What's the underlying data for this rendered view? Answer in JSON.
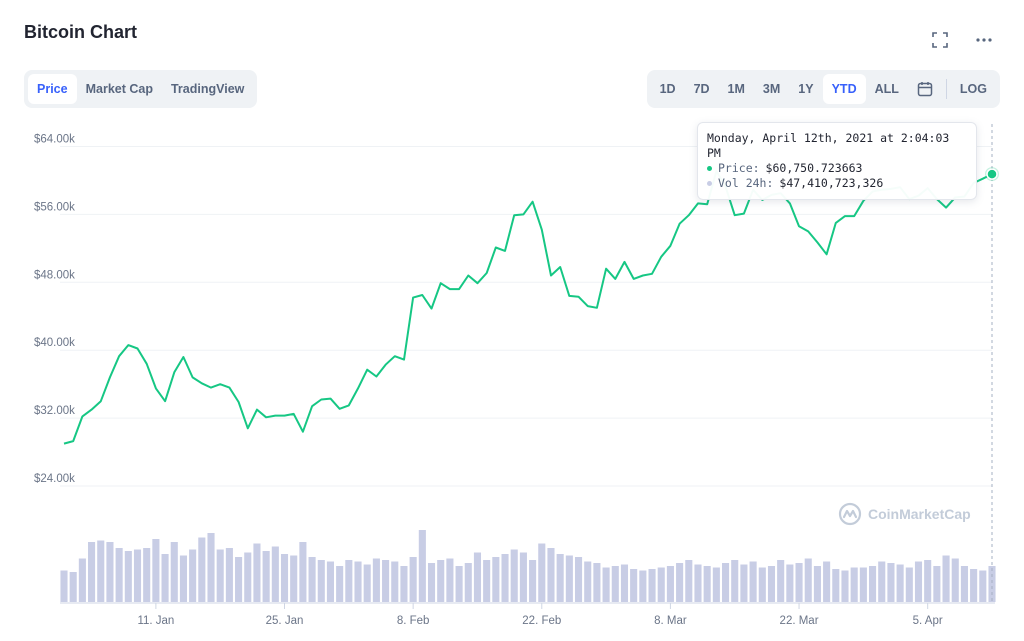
{
  "header": {
    "title": "Bitcoin Chart"
  },
  "icons": {
    "fullscreen": "fullscreen-icon",
    "more": "more-icon",
    "calendar": "calendar-icon",
    "logo": "coinmarketcap-logo-icon"
  },
  "tabs": [
    {
      "label": "Price",
      "active": true
    },
    {
      "label": "Market Cap",
      "active": false
    },
    {
      "label": "TradingView",
      "active": false
    }
  ],
  "ranges": [
    {
      "label": "1D",
      "active": false
    },
    {
      "label": "7D",
      "active": false
    },
    {
      "label": "1M",
      "active": false
    },
    {
      "label": "3M",
      "active": false
    },
    {
      "label": "1Y",
      "active": false
    },
    {
      "label": "YTD",
      "active": true
    },
    {
      "label": "ALL",
      "active": false
    }
  ],
  "log_label": "LOG",
  "tooltip": {
    "date": "Monday, April 12th, 2021 at 2:04:03 PM",
    "price_label": "Price:",
    "price_value": "$60,750.723663",
    "vol_label": "Vol 24h:",
    "vol_value": "$47,410,723,326"
  },
  "watermark": "CoinMarketCap",
  "colors": {
    "line": "#16c784",
    "volume": "#c8cde5",
    "accent": "#3861fb",
    "grid": "#eff2f5"
  },
  "chart_data": {
    "type": "line",
    "title": "Bitcoin Chart",
    "x_start": "2021-01-01",
    "x_end": "2021-04-12",
    "xticks": [
      {
        "label": "11. Jan",
        "date": "2021-01-11"
      },
      {
        "label": "25. Jan",
        "date": "2021-01-25"
      },
      {
        "label": "8. Feb",
        "date": "2021-02-08"
      },
      {
        "label": "22. Feb",
        "date": "2021-02-22"
      },
      {
        "label": "8. Mar",
        "date": "2021-03-08"
      },
      {
        "label": "22. Mar",
        "date": "2021-03-22"
      },
      {
        "label": "5. Apr",
        "date": "2021-04-05"
      }
    ],
    "yticks": [
      {
        "label": "$24.00k",
        "value": 24000
      },
      {
        "label": "$32.00k",
        "value": 32000
      },
      {
        "label": "$40.00k",
        "value": 40000
      },
      {
        "label": "$48.00k",
        "value": 48000
      },
      {
        "label": "$56.00k",
        "value": 56000
      },
      {
        "label": "$64.00k",
        "value": 64000
      }
    ],
    "ylim": [
      20000,
      65000
    ],
    "grid": true,
    "series": [
      {
        "name": "Price",
        "x": [
          "2021-01-01",
          "2021-01-02",
          "2021-01-03",
          "2021-01-04",
          "2021-01-05",
          "2021-01-06",
          "2021-01-07",
          "2021-01-08",
          "2021-01-09",
          "2021-01-10",
          "2021-01-11",
          "2021-01-12",
          "2021-01-13",
          "2021-01-14",
          "2021-01-15",
          "2021-01-16",
          "2021-01-17",
          "2021-01-18",
          "2021-01-19",
          "2021-01-20",
          "2021-01-21",
          "2021-01-22",
          "2021-01-23",
          "2021-01-24",
          "2021-01-25",
          "2021-01-26",
          "2021-01-27",
          "2021-01-28",
          "2021-01-29",
          "2021-01-30",
          "2021-01-31",
          "2021-02-01",
          "2021-02-02",
          "2021-02-03",
          "2021-02-04",
          "2021-02-05",
          "2021-02-06",
          "2021-02-07",
          "2021-02-08",
          "2021-02-09",
          "2021-02-10",
          "2021-02-11",
          "2021-02-12",
          "2021-02-13",
          "2021-02-14",
          "2021-02-15",
          "2021-02-16",
          "2021-02-17",
          "2021-02-18",
          "2021-02-19",
          "2021-02-20",
          "2021-02-21",
          "2021-02-22",
          "2021-02-23",
          "2021-02-24",
          "2021-02-25",
          "2021-02-26",
          "2021-02-27",
          "2021-02-28",
          "2021-03-01",
          "2021-03-02",
          "2021-03-03",
          "2021-03-04",
          "2021-03-05",
          "2021-03-06",
          "2021-03-07",
          "2021-03-08",
          "2021-03-09",
          "2021-03-10",
          "2021-03-11",
          "2021-03-12",
          "2021-03-13",
          "2021-03-14",
          "2021-03-15",
          "2021-03-16",
          "2021-03-17",
          "2021-03-18",
          "2021-03-19",
          "2021-03-20",
          "2021-03-21",
          "2021-03-22",
          "2021-03-23",
          "2021-03-24",
          "2021-03-25",
          "2021-03-26",
          "2021-03-27",
          "2021-03-28",
          "2021-03-29",
          "2021-03-30",
          "2021-03-31",
          "2021-04-01",
          "2021-04-02",
          "2021-04-03",
          "2021-04-04",
          "2021-04-05",
          "2021-04-06",
          "2021-04-07",
          "2021-04-08",
          "2021-04-09",
          "2021-04-10",
          "2021-04-11",
          "2021-04-12"
        ],
        "values": [
          29000,
          29300,
          32200,
          33000,
          34000,
          36800,
          39300,
          40600,
          40200,
          38400,
          35500,
          34000,
          37400,
          39200,
          36800,
          36100,
          35600,
          36000,
          35600,
          33900,
          30800,
          33000,
          32100,
          32300,
          32300,
          32500,
          30400,
          33400,
          34200,
          34300,
          33100,
          33500,
          35500,
          37700,
          36900,
          38300,
          39300,
          38900,
          46200,
          46500,
          44900,
          47900,
          47200,
          47200,
          48800,
          47900,
          49100,
          52100,
          51700,
          55900,
          56000,
          57500,
          54200,
          48800,
          49800,
          46400,
          46300,
          45200,
          45000,
          49600,
          48400,
          50400,
          48400,
          48800,
          49000,
          51000,
          52300,
          54900,
          55900,
          57300,
          57200,
          61100,
          59300,
          55900,
          56100,
          58900,
          57700,
          58300,
          58500,
          57300,
          54600,
          54000,
          52700,
          51300,
          55000,
          55800,
          55800,
          57600,
          58700,
          58900,
          59000,
          59200,
          57800,
          58200,
          59100,
          57800,
          56800,
          58000,
          58100,
          59700,
          60200,
          60750
        ]
      },
      {
        "name": "Vol 24h",
        "x": [
          "2021-01-01",
          "2021-01-02",
          "2021-01-03",
          "2021-01-04",
          "2021-01-05",
          "2021-01-06",
          "2021-01-07",
          "2021-01-08",
          "2021-01-09",
          "2021-01-10",
          "2021-01-11",
          "2021-01-12",
          "2021-01-13",
          "2021-01-14",
          "2021-01-15",
          "2021-01-16",
          "2021-01-17",
          "2021-01-18",
          "2021-01-19",
          "2021-01-20",
          "2021-01-21",
          "2021-01-22",
          "2021-01-23",
          "2021-01-24",
          "2021-01-25",
          "2021-01-26",
          "2021-01-27",
          "2021-01-28",
          "2021-01-29",
          "2021-01-30",
          "2021-01-31",
          "2021-02-01",
          "2021-02-02",
          "2021-02-03",
          "2021-02-04",
          "2021-02-05",
          "2021-02-06",
          "2021-02-07",
          "2021-02-08",
          "2021-02-09",
          "2021-02-10",
          "2021-02-11",
          "2021-02-12",
          "2021-02-13",
          "2021-02-14",
          "2021-02-15",
          "2021-02-16",
          "2021-02-17",
          "2021-02-18",
          "2021-02-19",
          "2021-02-20",
          "2021-02-21",
          "2021-02-22",
          "2021-02-23",
          "2021-02-24",
          "2021-02-25",
          "2021-02-26",
          "2021-02-27",
          "2021-02-28",
          "2021-03-01",
          "2021-03-02",
          "2021-03-03",
          "2021-03-04",
          "2021-03-05",
          "2021-03-06",
          "2021-03-07",
          "2021-03-08",
          "2021-03-09",
          "2021-03-10",
          "2021-03-11",
          "2021-03-12",
          "2021-03-13",
          "2021-03-14",
          "2021-03-15",
          "2021-03-16",
          "2021-03-17",
          "2021-03-18",
          "2021-03-19",
          "2021-03-20",
          "2021-03-21",
          "2021-03-22",
          "2021-03-23",
          "2021-03-24",
          "2021-03-25",
          "2021-03-26",
          "2021-03-27",
          "2021-03-28",
          "2021-03-29",
          "2021-03-30",
          "2021-03-31",
          "2021-04-01",
          "2021-04-02",
          "2021-04-03",
          "2021-04-04",
          "2021-04-05",
          "2021-04-06",
          "2021-04-07",
          "2021-04-08",
          "2021-04-09",
          "2021-04-10",
          "2021-04-11",
          "2021-04-12"
        ],
        "values": [
          42,
          40,
          58,
          80,
          82,
          80,
          72,
          68,
          70,
          72,
          84,
          64,
          80,
          62,
          70,
          86,
          92,
          70,
          72,
          60,
          66,
          78,
          68,
          74,
          64,
          62,
          80,
          60,
          56,
          54,
          48,
          56,
          54,
          50,
          58,
          56,
          54,
          48,
          60,
          96,
          52,
          56,
          58,
          48,
          52,
          66,
          56,
          60,
          64,
          70,
          66,
          56,
          78,
          72,
          64,
          62,
          60,
          54,
          52,
          46,
          48,
          50,
          44,
          42,
          44,
          46,
          48,
          52,
          56,
          50,
          48,
          46,
          52,
          56,
          50,
          54,
          46,
          48,
          56,
          50,
          52,
          58,
          48,
          54,
          44,
          42,
          46,
          46,
          48,
          54,
          52,
          50,
          46,
          54,
          56,
          48,
          62,
          58,
          48,
          44,
          42,
          48
        ]
      }
    ]
  }
}
